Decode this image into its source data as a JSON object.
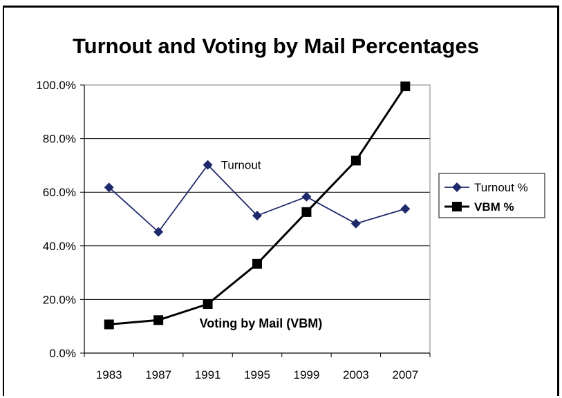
{
  "chart_data": {
    "type": "line",
    "title": "Turnout and Voting by Mail Percentages",
    "xlabel": "",
    "ylabel": "",
    "categories": [
      "1983",
      "1987",
      "1991",
      "1995",
      "1999",
      "2003",
      "2007"
    ],
    "ylim": [
      0,
      100
    ],
    "yticks": [
      "0.0%",
      "20.0%",
      "40.0%",
      "60.0%",
      "80.0%",
      "100.0%"
    ],
    "grid": true,
    "legend_position": "right",
    "series": [
      {
        "name": "Turnout %",
        "values": [
          61.8,
          45.2,
          70.2,
          51.3,
          58.3,
          48.3,
          53.8
        ],
        "color": "#1F2A6B",
        "marker": "diamond"
      },
      {
        "name": "VBM %",
        "values": [
          10.7,
          12.3,
          18.3,
          33.3,
          52.6,
          71.8,
          99.5
        ],
        "color": "#000000",
        "marker": "square"
      }
    ],
    "annotations": [
      {
        "text": "Turnout",
        "series": 0,
        "point": 2
      },
      {
        "text": "Voting by Mail (VBM)",
        "series": 1,
        "point": 2
      }
    ]
  }
}
